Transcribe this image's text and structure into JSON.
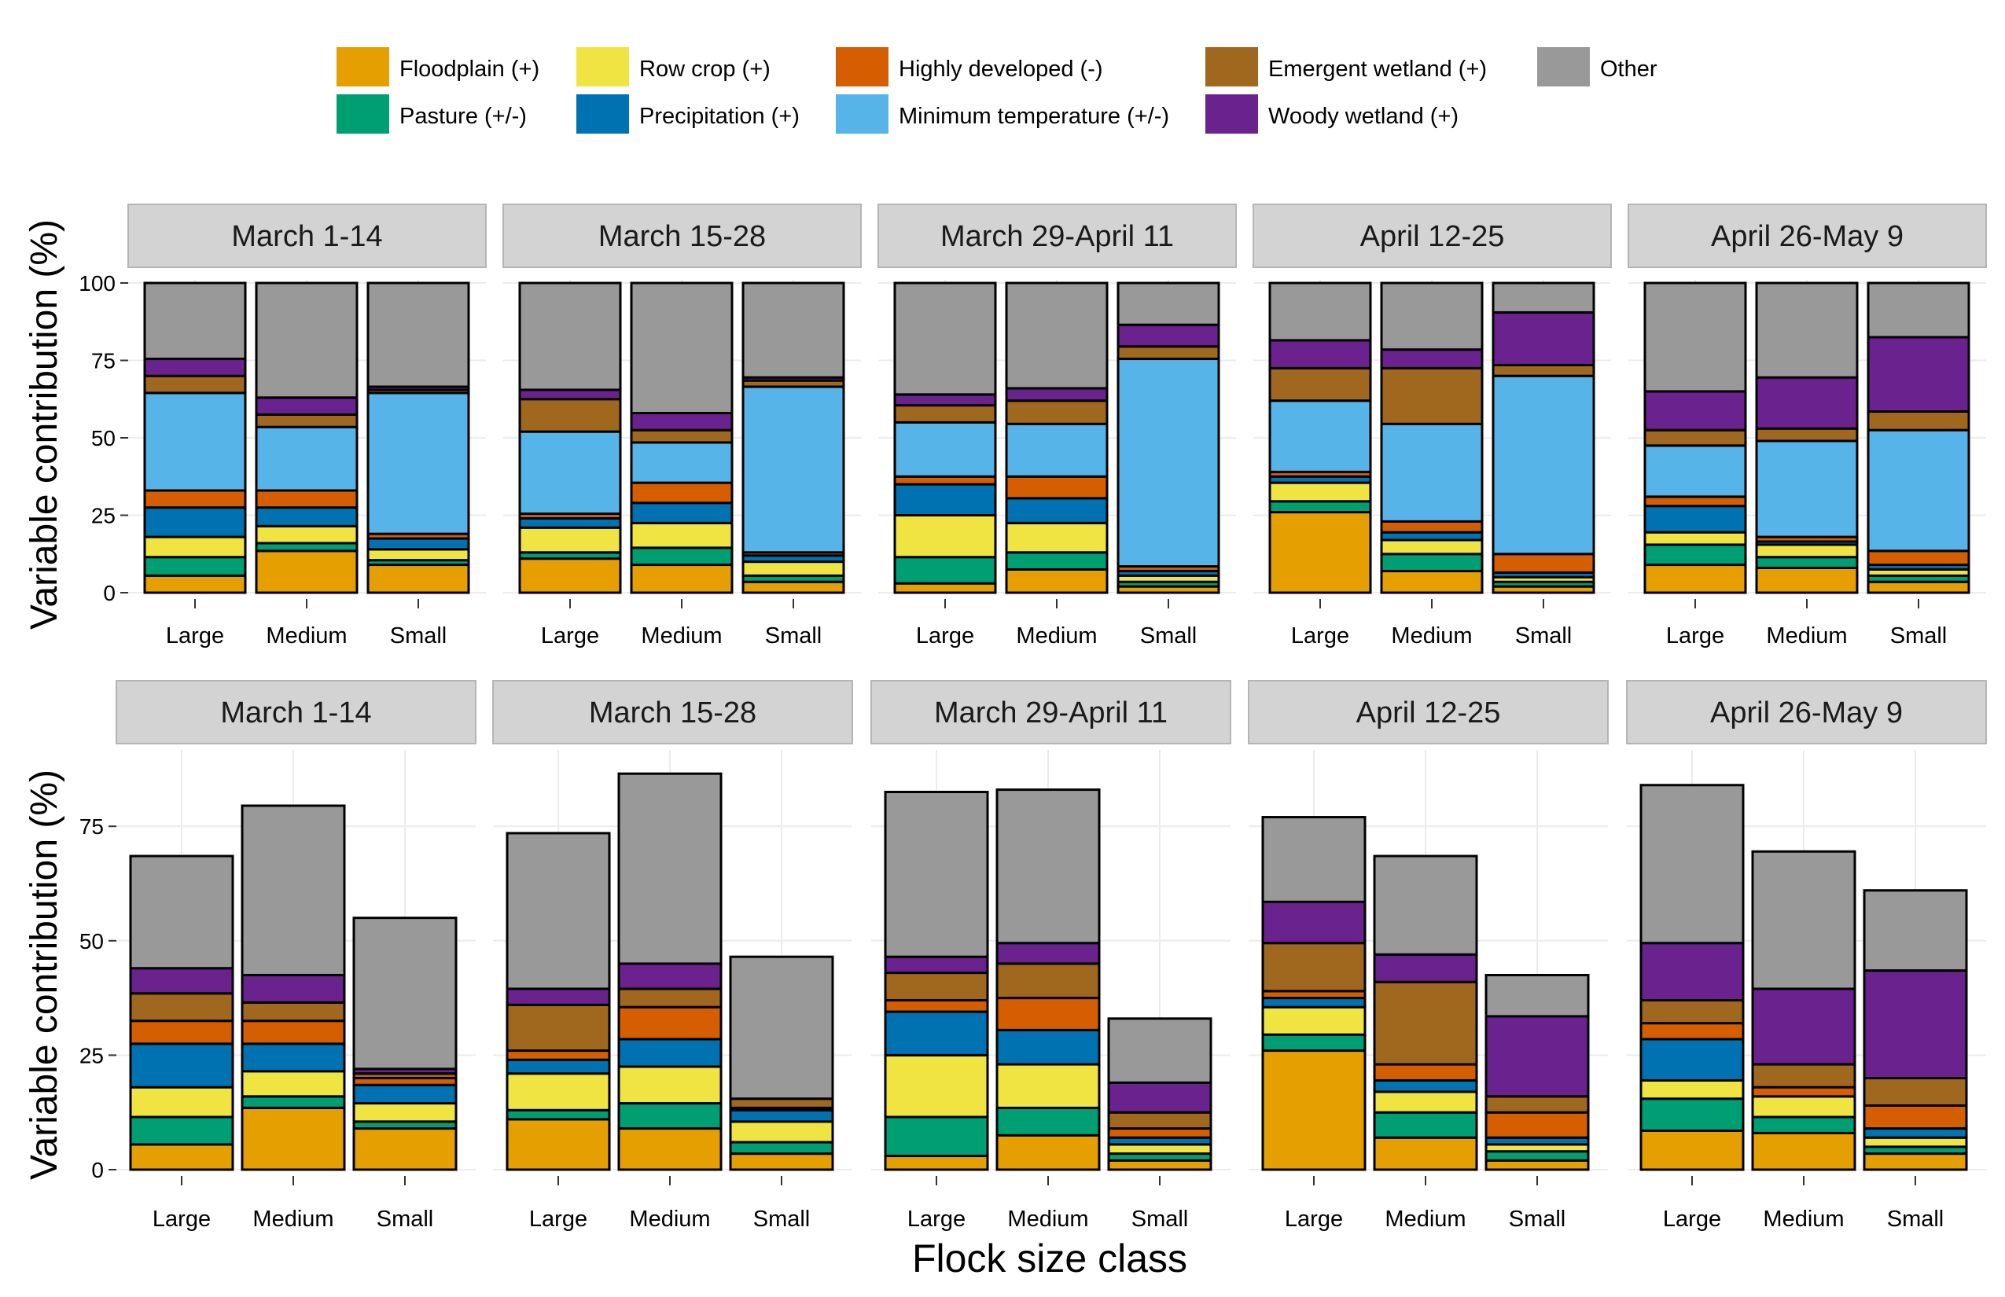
{
  "figure": {
    "xlabel": "Flock size class",
    "ylabel_top": "Variable contribution (%)",
    "ylabel_bottom": "Variable contribution (%)"
  },
  "legend": {
    "position": "top",
    "items": [
      {
        "key": "floodplain",
        "label": "Floodplain (+)",
        "color": "#E69F00"
      },
      {
        "key": "pasture",
        "label": "Pasture (+/-)",
        "color": "#009E73"
      },
      {
        "key": "rowcrop",
        "label": "Row crop (+)",
        "color": "#F0E442"
      },
      {
        "key": "precip",
        "label": "Precipitation (+)",
        "color": "#0072B2"
      },
      {
        "key": "highdev",
        "label": "Highly developed (-)",
        "color": "#D55E00"
      },
      {
        "key": "mintemp",
        "label": "Minimum temperature (+/-)",
        "color": "#56B4E9"
      },
      {
        "key": "emergent",
        "label": "Emergent wetland  (+)",
        "color": "#A0671F"
      },
      {
        "key": "woody",
        "label": "Woody wetland (+)",
        "color": "#6A238E"
      },
      {
        "key": "other",
        "label": "Other",
        "color": "#999999"
      }
    ]
  },
  "chart_data": [
    {
      "type": "bar",
      "stacked": true,
      "ylabel": "Variable contribution (%)",
      "ylim": [
        0,
        100
      ],
      "yticks": [
        0,
        25,
        50,
        75,
        100
      ],
      "stack_order": [
        "floodplain",
        "pasture",
        "rowcrop",
        "precip",
        "highdev",
        "mintemp",
        "emergent",
        "woody",
        "other"
      ],
      "categories": [
        "Large",
        "Medium",
        "Small"
      ],
      "panels": [
        {
          "title": "March 1-14",
          "bars": [
            {
              "category": "Large",
              "values": {
                "floodplain": 5.5,
                "pasture": 6,
                "rowcrop": 6.5,
                "precip": 9.5,
                "highdev": 5.5,
                "mintemp": 31.5,
                "emergent": 5.5,
                "woody": 5.5,
                "other": 24.5
              }
            },
            {
              "category": "Medium",
              "values": {
                "floodplain": 13.5,
                "pasture": 2.5,
                "rowcrop": 5.5,
                "precip": 6,
                "highdev": 5.5,
                "mintemp": 20.5,
                "emergent": 4,
                "woody": 5.5,
                "other": 37
              }
            },
            {
              "category": "Small",
              "values": {
                "floodplain": 9,
                "pasture": 1.5,
                "rowcrop": 3.5,
                "precip": 3.5,
                "highdev": 1.5,
                "mintemp": 45.5,
                "emergent": 1,
                "woody": 1,
                "other": 33.5
              }
            }
          ]
        },
        {
          "title": "March 15-28",
          "bars": [
            {
              "category": "Large",
              "values": {
                "floodplain": 11,
                "pasture": 2,
                "rowcrop": 8,
                "precip": 3,
                "highdev": 1.5,
                "mintemp": 26.5,
                "emergent": 10.5,
                "woody": 3,
                "other": 34.5
              }
            },
            {
              "category": "Medium",
              "values": {
                "floodplain": 9,
                "pasture": 5.5,
                "rowcrop": 8,
                "precip": 6.5,
                "highdev": 6.5,
                "mintemp": 13,
                "emergent": 4,
                "woody": 5.5,
                "other": 42
              }
            },
            {
              "category": "Small",
              "values": {
                "floodplain": 3.5,
                "pasture": 2,
                "rowcrop": 4.5,
                "precip": 2,
                "highdev": 1,
                "mintemp": 53.5,
                "emergent": 2,
                "woody": 1,
                "other": 30.5
              }
            }
          ]
        },
        {
          "title": "March 29-April 11",
          "bars": [
            {
              "category": "Large",
              "values": {
                "floodplain": 3,
                "pasture": 8.5,
                "rowcrop": 13.5,
                "precip": 10,
                "highdev": 2.5,
                "mintemp": 17.5,
                "emergent": 5.5,
                "woody": 3.5,
                "other": 36
              }
            },
            {
              "category": "Medium",
              "values": {
                "floodplain": 7.5,
                "pasture": 5.5,
                "rowcrop": 9.5,
                "precip": 8,
                "highdev": 7,
                "mintemp": 17,
                "emergent": 7.5,
                "woody": 4,
                "other": 34
              }
            },
            {
              "category": "Small",
              "values": {
                "floodplain": 2,
                "pasture": 1.5,
                "rowcrop": 2,
                "precip": 1.5,
                "highdev": 1.5,
                "mintemp": 67,
                "emergent": 4,
                "woody": 7,
                "other": 13.5
              }
            }
          ]
        },
        {
          "title": "April 12-25",
          "bars": [
            {
              "category": "Large",
              "values": {
                "floodplain": 26,
                "pasture": 3.5,
                "rowcrop": 6,
                "precip": 2,
                "highdev": 1.5,
                "mintemp": 23,
                "emergent": 10.5,
                "woody": 9,
                "other": 18.5
              }
            },
            {
              "category": "Medium",
              "values": {
                "floodplain": 7,
                "pasture": 5.5,
                "rowcrop": 4.5,
                "precip": 2.5,
                "highdev": 3.5,
                "mintemp": 31.5,
                "emergent": 18,
                "woody": 6,
                "other": 21.5
              }
            },
            {
              "category": "Small",
              "values": {
                "floodplain": 2,
                "pasture": 1.5,
                "rowcrop": 1.5,
                "precip": 1.5,
                "highdev": 6,
                "mintemp": 57.5,
                "emergent": 3.5,
                "woody": 17,
                "other": 9.5
              }
            }
          ]
        },
        {
          "title": "April 26-May 9",
          "bars": [
            {
              "category": "Large",
              "values": {
                "floodplain": 9,
                "pasture": 6.5,
                "rowcrop": 4,
                "precip": 8.5,
                "highdev": 3,
                "mintemp": 16.5,
                "emergent": 5,
                "woody": 12.5,
                "other": 35
              }
            },
            {
              "category": "Medium",
              "values": {
                "floodplain": 8,
                "pasture": 3.5,
                "rowcrop": 4,
                "precip": 1,
                "highdev": 1.5,
                "mintemp": 31,
                "emergent": 4,
                "woody": 16.5,
                "other": 30.5
              }
            },
            {
              "category": "Small",
              "values": {
                "floodplain": 3.5,
                "pasture": 2,
                "rowcrop": 2,
                "precip": 1.5,
                "highdev": 4.5,
                "mintemp": 39,
                "emergent": 6,
                "woody": 24,
                "other": 17.5
              }
            }
          ]
        }
      ]
    },
    {
      "type": "bar",
      "stacked": true,
      "ylabel": "Variable contribution (%)",
      "ylim": [
        0,
        91
      ],
      "yticks": [
        0,
        25,
        50,
        75
      ],
      "stack_order": [
        "floodplain",
        "pasture",
        "rowcrop",
        "precip",
        "highdev",
        "mintemp",
        "emergent",
        "woody",
        "other"
      ],
      "categories": [
        "Large",
        "Medium",
        "Small"
      ],
      "panels": [
        {
          "title": "March 1-14",
          "bars": [
            {
              "category": "Large",
              "values": {
                "floodplain": 5.5,
                "pasture": 6,
                "rowcrop": 6.5,
                "precip": 9.5,
                "highdev": 5,
                "mintemp": 0,
                "emergent": 6,
                "woody": 5.5,
                "other": 24.5
              }
            },
            {
              "category": "Medium",
              "values": {
                "floodplain": 13.5,
                "pasture": 2.5,
                "rowcrop": 5.5,
                "precip": 6,
                "highdev": 5,
                "mintemp": 0,
                "emergent": 4,
                "woody": 6,
                "other": 37
              }
            },
            {
              "category": "Small",
              "values": {
                "floodplain": 9,
                "pasture": 1.5,
                "rowcrop": 4,
                "precip": 4,
                "highdev": 1.5,
                "mintemp": 0,
                "emergent": 1,
                "woody": 1,
                "other": 33
              }
            }
          ]
        },
        {
          "title": "March 15-28",
          "bars": [
            {
              "category": "Large",
              "values": {
                "floodplain": 11,
                "pasture": 2,
                "rowcrop": 8,
                "precip": 3,
                "highdev": 2,
                "mintemp": 0,
                "emergent": 10,
                "woody": 3.5,
                "other": 34
              }
            },
            {
              "category": "Medium",
              "values": {
                "floodplain": 9,
                "pasture": 5.5,
                "rowcrop": 8,
                "precip": 6,
                "highdev": 7,
                "mintemp": 0,
                "emergent": 4,
                "woody": 5.5,
                "other": 41.5
              }
            },
            {
              "category": "Small",
              "values": {
                "floodplain": 3.5,
                "pasture": 2.5,
                "rowcrop": 4.5,
                "precip": 2.5,
                "highdev": 0.5,
                "mintemp": 0,
                "emergent": 2,
                "woody": 0,
                "other": 31
              }
            }
          ]
        },
        {
          "title": "March 29-April 11",
          "bars": [
            {
              "category": "Large",
              "values": {
                "floodplain": 3,
                "pasture": 8.5,
                "rowcrop": 13.5,
                "precip": 9.5,
                "highdev": 2.5,
                "mintemp": 0,
                "emergent": 6,
                "woody": 3.5,
                "other": 36
              }
            },
            {
              "category": "Medium",
              "values": {
                "floodplain": 7.5,
                "pasture": 6,
                "rowcrop": 9.5,
                "precip": 7.5,
                "highdev": 7,
                "mintemp": 0,
                "emergent": 7.5,
                "woody": 4.5,
                "other": 33.5
              }
            },
            {
              "category": "Small",
              "values": {
                "floodplain": 2,
                "pasture": 1.5,
                "rowcrop": 2,
                "precip": 1.5,
                "highdev": 2,
                "mintemp": 0,
                "emergent": 3.5,
                "woody": 6.5,
                "other": 14
              }
            }
          ]
        },
        {
          "title": "April 12-25",
          "bars": [
            {
              "category": "Large",
              "values": {
                "floodplain": 26,
                "pasture": 3.5,
                "rowcrop": 6,
                "precip": 2,
                "highdev": 1.5,
                "mintemp": 0,
                "emergent": 10.5,
                "woody": 9,
                "other": 18.5
              }
            },
            {
              "category": "Medium",
              "values": {
                "floodplain": 7,
                "pasture": 5.5,
                "rowcrop": 4.5,
                "precip": 2.5,
                "highdev": 3.5,
                "mintemp": 0,
                "emergent": 18,
                "woody": 6,
                "other": 21.5
              }
            },
            {
              "category": "Small",
              "values": {
                "floodplain": 2,
                "pasture": 2,
                "rowcrop": 1.5,
                "precip": 1.5,
                "highdev": 5.5,
                "mintemp": 0,
                "emergent": 3.5,
                "woody": 17.5,
                "other": 9
              }
            }
          ]
        },
        {
          "title": "April 26-May 9",
          "bars": [
            {
              "category": "Large",
              "values": {
                "floodplain": 8.5,
                "pasture": 7,
                "rowcrop": 4,
                "precip": 9,
                "highdev": 3.5,
                "mintemp": 0,
                "emergent": 5,
                "woody": 12.5,
                "other": 34.5
              }
            },
            {
              "category": "Medium",
              "values": {
                "floodplain": 8,
                "pasture": 3.5,
                "rowcrop": 4.5,
                "precip": 0,
                "highdev": 2,
                "mintemp": 0,
                "emergent": 5,
                "woody": 16.5,
                "other": 30
              }
            },
            {
              "category": "Small",
              "values": {
                "floodplain": 3.5,
                "pasture": 1.5,
                "rowcrop": 2,
                "precip": 2,
                "highdev": 5,
                "mintemp": 0,
                "emergent": 6,
                "woody": 23.5,
                "other": 17.5
              }
            }
          ]
        }
      ]
    }
  ]
}
